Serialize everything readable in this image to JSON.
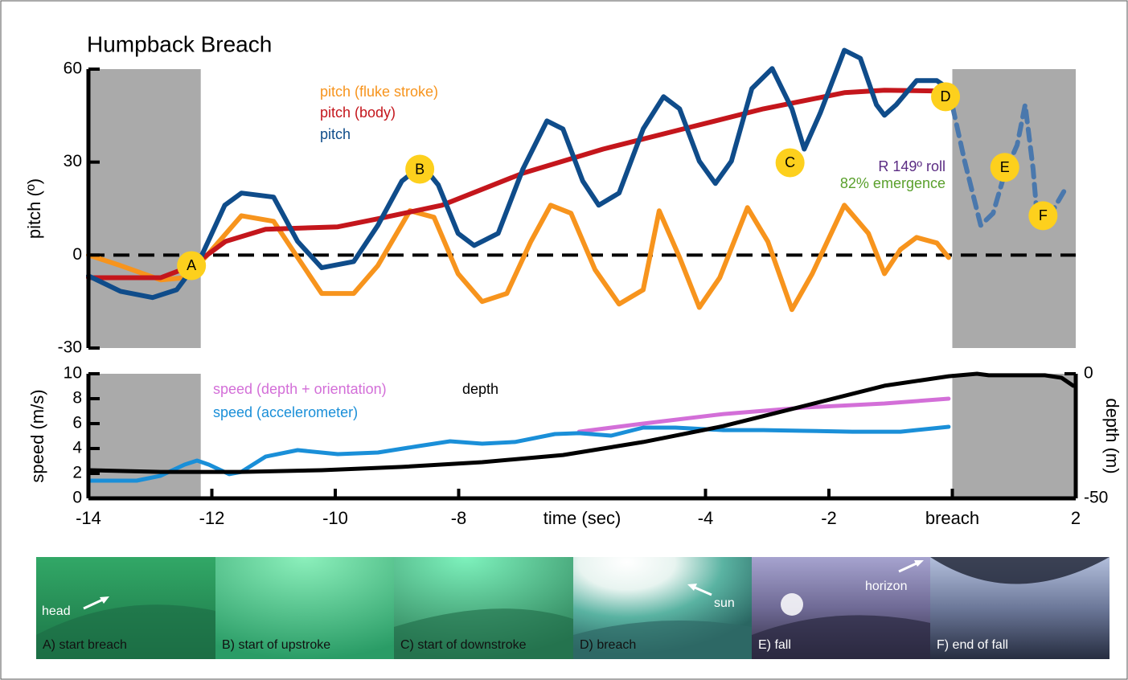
{
  "chart_data": [
    {
      "type": "line",
      "title": "Humpback Breach",
      "y_label": "pitch (º)",
      "xlim": [
        -14,
        2
      ],
      "ylim": [
        -30,
        60
      ],
      "yticks": [
        -30,
        0,
        30,
        60
      ],
      "reference_line": 0,
      "shaded_regions": [
        [
          -14,
          -12.18
        ],
        [
          0,
          2
        ]
      ],
      "series": [
        {
          "name": "pitch (fluke stroke)",
          "color": "#f7941d",
          "x": [
            -14,
            -13.48,
            -12.83,
            -12.44,
            -12.11,
            -11.52,
            -11.0,
            -10.61,
            -10.22,
            -9.7,
            -9.31,
            -8.79,
            -8.4,
            -8.01,
            -7.62,
            -7.22,
            -6.83,
            -6.51,
            -6.18,
            -5.79,
            -5.4,
            -5.01,
            -4.75,
            -4.42,
            -4.1,
            -3.77,
            -3.32,
            -2.99,
            -2.6,
            -2.27,
            -1.75,
            -1.36,
            -1.1,
            -0.84,
            -0.58,
            -0.25,
            -0.06
          ],
          "values": [
            0,
            -3.4,
            -8.0,
            -7.3,
            -0.8,
            12.7,
            10.9,
            -0.8,
            -12.4,
            -12.4,
            -3.4,
            14.3,
            12.2,
            -6.0,
            -15.0,
            -12.4,
            4.4,
            16.1,
            13.5,
            -4.7,
            -15.8,
            -11.2,
            14.3,
            -0.8,
            -16.9,
            -7.3,
            15.3,
            4.4,
            -17.6,
            -6.0,
            16.1,
            7.0,
            -6.0,
            1.8,
            5.7,
            3.9,
            -0.8
          ]
        },
        {
          "name": "pitch (body)",
          "color": "#c4161c",
          "x": [
            -14,
            -12.83,
            -12.31,
            -11.78,
            -11.13,
            -9.96,
            -9.31,
            -8.27,
            -6.96,
            -5.66,
            -4.36,
            -3.06,
            -1.75,
            -1.1,
            -0.06
          ],
          "values": [
            -7.3,
            -7.3,
            -3.4,
            4.4,
            8.3,
            9.1,
            11.7,
            16.1,
            26.4,
            34.2,
            40.7,
            47.2,
            52.4,
            53.2,
            52.9
          ]
        },
        {
          "name": "pitch",
          "color": "#0f4c8a",
          "x": [
            -14,
            -13.48,
            -12.96,
            -12.57,
            -12.18,
            -11.79,
            -11.52,
            -11.0,
            -10.61,
            -10.22,
            -9.7,
            -9.31,
            -8.92,
            -8.59,
            -8.33,
            -8.01,
            -7.75,
            -7.36,
            -6.96,
            -6.57,
            -6.31,
            -5.99,
            -5.73,
            -5.4,
            -5.01,
            -4.68,
            -4.42,
            -4.1,
            -3.84,
            -3.58,
            -3.25,
            -2.92,
            -2.6,
            -2.4,
            -2.14,
            -1.75,
            -1.49,
            -1.23,
            -1.1,
            -0.91,
            -0.58,
            -0.25,
            -0.06
          ],
          "values": [
            -6.7,
            -11.7,
            -13.7,
            -11.2,
            -0.8,
            16.1,
            20.0,
            18.7,
            4.4,
            -4.1,
            -2.1,
            9.6,
            23.9,
            29.0,
            22.6,
            7.0,
            3.1,
            7.0,
            27.7,
            43.3,
            40.7,
            23.9,
            16.1,
            20.0,
            40.7,
            51.1,
            47.2,
            30.3,
            23.1,
            30.3,
            53.7,
            60.2,
            47.2,
            34.2,
            45.9,
            66.1,
            63.5,
            48.5,
            45.1,
            48.5,
            56.3,
            56.3,
            53.7
          ]
        },
        {
          "color": "#4a78ad",
          "style": "dashed",
          "x": [
            -0.06,
            0.2,
            0.46,
            0.66,
            0.85,
            1.05,
            1.18,
            1.31,
            1.37,
            1.64,
            1.83
          ],
          "values": [
            53.7,
            30.3,
            9.6,
            13.5,
            26.4,
            35.5,
            48.5,
            27.7,
            13.5,
            14.8,
            21.3
          ]
        }
      ],
      "markers": [
        {
          "label": "A",
          "x": -12.33,
          "y": -3.4
        },
        {
          "label": "B",
          "x": -8.63,
          "y": 27.7
        },
        {
          "label": "C",
          "x": -2.63,
          "y": 29.8
        },
        {
          "label": "D",
          "x": -0.11,
          "y": 51.1
        },
        {
          "label": "E",
          "x": 0.85,
          "y": 28.3
        },
        {
          "label": "F",
          "x": 1.47,
          "y": 12.7
        }
      ],
      "annotations": [
        {
          "text": "R 149º roll",
          "color": "#5b2c83"
        },
        {
          "text": "82% emergence",
          "color": "#5aa02c"
        }
      ]
    },
    {
      "type": "line",
      "x_label": "time (sec)",
      "y_label": "speed (m/s)",
      "y2_label": "depth (m)",
      "xlim": [
        -14,
        2
      ],
      "ylim": [
        0,
        10
      ],
      "y2lim": [
        -50,
        0
      ],
      "xticks": [
        -14,
        -12,
        -10,
        -8,
        -4,
        -2,
        {
          "value": 0,
          "label": "breach"
        },
        2
      ],
      "yticks": [
        0,
        2,
        4,
        6,
        8,
        10
      ],
      "y2ticks": [
        -50,
        0
      ],
      "shaded_regions": [
        [
          -14,
          -12.18
        ],
        [
          0,
          2
        ]
      ],
      "series": [
        {
          "name": "speed (depth + orientation)",
          "color": "#d36fd8",
          "x": [
            -6.05,
            -5.01,
            -3.71,
            -2.4,
            -1.1,
            -0.06
          ],
          "values": [
            5.35,
            6.0,
            6.77,
            7.29,
            7.61,
            8.0
          ]
        },
        {
          "name": "speed (accelerometer)",
          "color": "#1a8fd8",
          "x": [
            -14,
            -13.22,
            -12.83,
            -12.44,
            -12.24,
            -12.05,
            -11.72,
            -11.52,
            -11.13,
            -10.61,
            -9.96,
            -9.31,
            -8.66,
            -8.14,
            -7.62,
            -7.09,
            -6.44,
            -6.05,
            -5.53,
            -5.01,
            -4.49,
            -3.71,
            -3.06,
            -2.4,
            -1.62,
            -0.84,
            -0.06
          ],
          "values": [
            1.42,
            1.42,
            1.81,
            2.71,
            3.03,
            2.71,
            1.94,
            2.13,
            3.35,
            3.87,
            3.55,
            3.68,
            4.19,
            4.58,
            4.39,
            4.52,
            5.16,
            5.23,
            5.03,
            5.68,
            5.68,
            5.48,
            5.48,
            5.42,
            5.35,
            5.35,
            5.74
          ]
        },
        {
          "name": "depth",
          "color": "#000000",
          "axis": "y2",
          "x": [
            -14,
            -12.83,
            -11.52,
            -10.22,
            -8.92,
            -7.62,
            -6.31,
            -5.01,
            -3.71,
            -2.4,
            -1.1,
            -0.06,
            0.4,
            0.59,
            1.5,
            1.77,
            1.96
          ],
          "values": [
            -38.7,
            -39.4,
            -39.4,
            -38.7,
            -37.4,
            -35.5,
            -32.6,
            -27.4,
            -21.0,
            -12.9,
            -4.8,
            -1.0,
            0,
            -0.6,
            -0.6,
            -1.6,
            -4.8
          ]
        }
      ]
    }
  ],
  "photos": [
    {
      "caption": "A) start breach",
      "callout": "head"
    },
    {
      "caption": "B) start of upstroke"
    },
    {
      "caption": "C) start of downstroke"
    },
    {
      "caption": "D) breach",
      "callout": "sun"
    },
    {
      "caption": "E) fall",
      "callout": "horizon"
    },
    {
      "caption": "F) end of fall"
    }
  ]
}
